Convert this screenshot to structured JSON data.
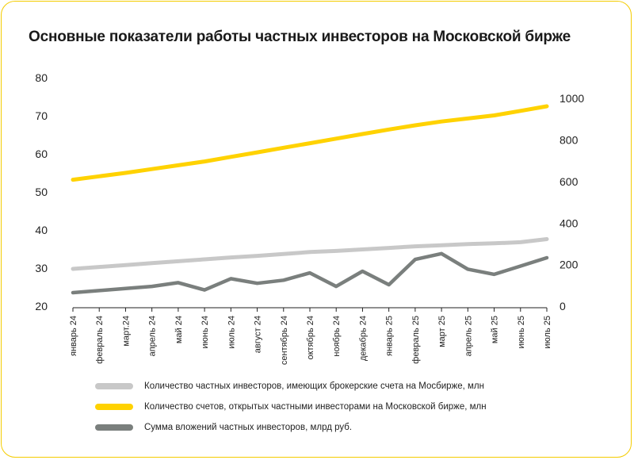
{
  "title": "Основные показатели работы частных инвесторов на Московской бирже",
  "chart_data": {
    "type": "line",
    "title": "Основные показатели работы частных инвесторов на Московской бирже",
    "categories": [
      "январь 24",
      "февраль 24",
      "март.24",
      "апрель 24",
      "май 24",
      "июнь 24",
      "июль 24",
      "август 24",
      "сентябрь 24",
      "октябрь 24",
      "ноябрь 24",
      "декабрь 24",
      "январь 25",
      "февраль 25",
      "март 25",
      "апрель 25",
      "май 25",
      "июнь 25",
      "июль 25"
    ],
    "y_left": {
      "ylim": [
        20,
        80
      ],
      "ticks": [
        "20",
        "30",
        "40",
        "50",
        "60",
        "70",
        "80"
      ]
    },
    "y_right": {
      "ylim": [
        0,
        1100
      ],
      "ticks": [
        "0",
        "200",
        "400",
        "600",
        "800",
        "1000"
      ]
    },
    "series": [
      {
        "name": "Количество частных инвесторов, имеющих брокерские счета на Мосбирже, млн",
        "axis": "left",
        "color": "#c8c8c8",
        "values": [
          29.8,
          30.3,
          30.8,
          31.3,
          31.8,
          32.3,
          32.8,
          33.2,
          33.7,
          34.2,
          34.5,
          34.9,
          35.3,
          35.7,
          36.0,
          36.3,
          36.5,
          36.8,
          37.6
        ]
      },
      {
        "name": "Количество счетов, открытых частными инвесторами на Московской бирже, млн",
        "axis": "left",
        "color": "#ffd200",
        "values": [
          53.2,
          54.1,
          55.0,
          56.0,
          57.0,
          58.0,
          59.2,
          60.4,
          61.6,
          62.8,
          64.0,
          65.2,
          66.4,
          67.5,
          68.5,
          69.3,
          70.1,
          71.3,
          72.5
        ]
      },
      {
        "name": "Сумма вложений частных инвесторов, млрд руб.",
        "axis": "right",
        "color": "#7a7f7d",
        "values": [
          65,
          75,
          85,
          95,
          113,
          78,
          132,
          110,
          125,
          160,
          95,
          168,
          103,
          225,
          253,
          178,
          153,
          193,
          233
        ]
      }
    ]
  }
}
